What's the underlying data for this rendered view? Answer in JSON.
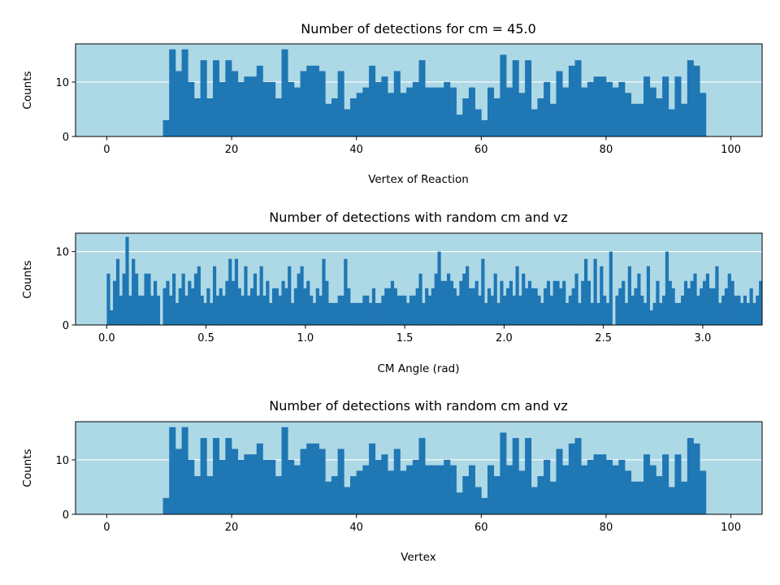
{
  "chart_data": [
    {
      "type": "bar",
      "title": "Number of detections for cm = 45.0",
      "xlabel": "Vertex of Reaction",
      "ylabel": "Counts",
      "xlim": [
        -5,
        105
      ],
      "ylim": [
        0,
        17
      ],
      "xticks": [
        0,
        20,
        40,
        60,
        80,
        100
      ],
      "xtick_labels": [
        "0",
        "20",
        "40",
        "60",
        "80",
        "100"
      ],
      "yticks": [
        0,
        10
      ],
      "ytick_labels": [
        "0",
        "10"
      ],
      "grid": "horizontal",
      "background": "#add8e6",
      "bar_color": "#1f77b4",
      "bin_start": 9,
      "bin_width": 1,
      "values": [
        3,
        16,
        12,
        16,
        10,
        7,
        14,
        7,
        14,
        10,
        14,
        12,
        10,
        11,
        11,
        13,
        10,
        10,
        7,
        16,
        10,
        9,
        12,
        13,
        13,
        12,
        6,
        7,
        12,
        5,
        7,
        8,
        9,
        13,
        10,
        11,
        8,
        12,
        8,
        9,
        10,
        14,
        9,
        9,
        9,
        10,
        9,
        4,
        7,
        9,
        5,
        3,
        9,
        7,
        15,
        9,
        14,
        8,
        14,
        5,
        7,
        10,
        6,
        12,
        9,
        13,
        14,
        9,
        10,
        11,
        11,
        10,
        9,
        10,
        8,
        6,
        6,
        11,
        9,
        7,
        11,
        5,
        11,
        6,
        14,
        13,
        8
      ]
    },
    {
      "type": "bar",
      "title": "Number of detections with random cm and vz",
      "xlabel": "CM Angle (rad)",
      "ylabel": "Counts",
      "xlim": [
        -0.157,
        3.299
      ],
      "ylim": [
        0,
        12.5
      ],
      "xticks": [
        0.0,
        0.5,
        1.0,
        1.5,
        2.0,
        2.5,
        3.0
      ],
      "xtick_labels": [
        "0.0",
        "0.5",
        "1.0",
        "1.5",
        "2.0",
        "2.5",
        "3.0"
      ],
      "yticks": [
        0,
        10
      ],
      "ytick_labels": [
        "0",
        "10"
      ],
      "grid": "horizontal",
      "background": "#add8e6",
      "bar_color": "#1f77b4",
      "bin_start": 0,
      "bin_width": 0.015708,
      "values": [
        7,
        2,
        6,
        9,
        4,
        7,
        12,
        4,
        9,
        7,
        4,
        4,
        7,
        7,
        4,
        6,
        4,
        0,
        5,
        6,
        4,
        7,
        3,
        5,
        7,
        4,
        6,
        5,
        7,
        8,
        4,
        3,
        5,
        3,
        8,
        4,
        5,
        4,
        6,
        9,
        6,
        9,
        5,
        4,
        8,
        4,
        5,
        7,
        4,
        8,
        4,
        6,
        3,
        5,
        5,
        4,
        6,
        5,
        8,
        3,
        5,
        7,
        8,
        5,
        6,
        4,
        3,
        5,
        4,
        9,
        6,
        3,
        3,
        3,
        4,
        4,
        9,
        5,
        3,
        3,
        3,
        3,
        4,
        4,
        3,
        5,
        3,
        3,
        4,
        5,
        5,
        6,
        5,
        4,
        4,
        4,
        3,
        4,
        4,
        5,
        7,
        3,
        5,
        4,
        5,
        7,
        10,
        6,
        6,
        7,
        6,
        5,
        4,
        6,
        7,
        8,
        5,
        5,
        6,
        4,
        9,
        3,
        5,
        4,
        7,
        3,
        6,
        4,
        5,
        6,
        4,
        8,
        4,
        7,
        5,
        6,
        5,
        5,
        4,
        3,
        5,
        6,
        4,
        6,
        6,
        5,
        6,
        3,
        4,
        5,
        7,
        3,
        6,
        9,
        6,
        3,
        9,
        3,
        8,
        4,
        3,
        10,
        0,
        4,
        5,
        6,
        3,
        8,
        4,
        5,
        7,
        4,
        3,
        8,
        2,
        3,
        6,
        3,
        4,
        10,
        6,
        5,
        3,
        3,
        4,
        6,
        5,
        6,
        7,
        4,
        5,
        6,
        7,
        5,
        5,
        8,
        3,
        4,
        5,
        7,
        6,
        4,
        4,
        3,
        4,
        3,
        5,
        3,
        4,
        6
      ]
    },
    {
      "type": "bar",
      "title": "Number of detections with random cm and vz",
      "xlabel": "Vertex",
      "ylabel": "Counts",
      "xlim": [
        -5,
        105
      ],
      "ylim": [
        0,
        17
      ],
      "xticks": [
        0,
        20,
        40,
        60,
        80,
        100
      ],
      "xtick_labels": [
        "0",
        "20",
        "40",
        "60",
        "80",
        "100"
      ],
      "yticks": [
        0,
        10
      ],
      "ytick_labels": [
        "0",
        "10"
      ],
      "grid": "horizontal",
      "background": "#add8e6",
      "bar_color": "#1f77b4",
      "bin_start": 9,
      "bin_width": 1,
      "values": [
        3,
        16,
        12,
        16,
        10,
        7,
        14,
        7,
        14,
        10,
        14,
        12,
        10,
        11,
        11,
        13,
        10,
        10,
        7,
        16,
        10,
        9,
        12,
        13,
        13,
        12,
        6,
        7,
        12,
        5,
        7,
        8,
        9,
        13,
        10,
        11,
        8,
        12,
        8,
        9,
        10,
        14,
        9,
        9,
        9,
        10,
        9,
        4,
        7,
        9,
        5,
        3,
        9,
        7,
        15,
        9,
        14,
        8,
        14,
        5,
        7,
        10,
        6,
        12,
        9,
        13,
        14,
        9,
        10,
        11,
        11,
        10,
        9,
        10,
        8,
        6,
        6,
        11,
        9,
        7,
        11,
        5,
        11,
        6,
        14,
        13,
        8
      ]
    }
  ]
}
